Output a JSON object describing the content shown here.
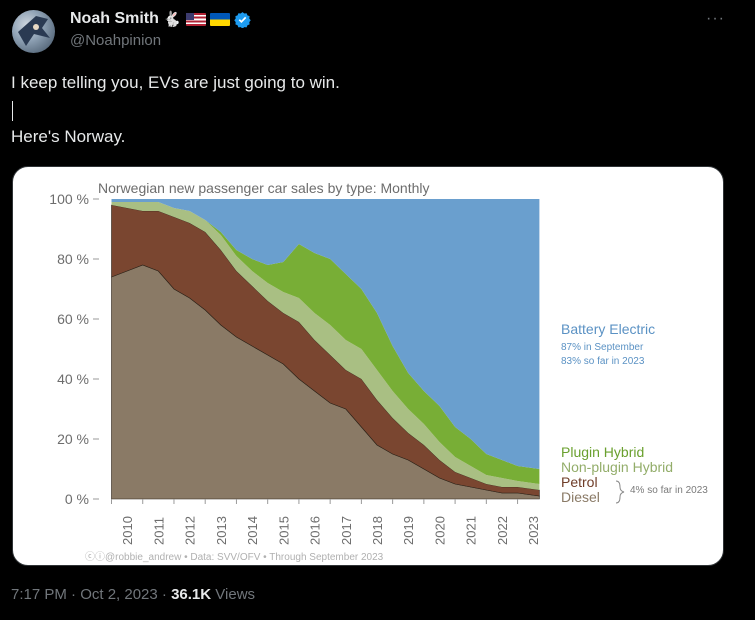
{
  "tweet": {
    "author": {
      "display_name": "Noah Smith",
      "handle": "@Noahpinion",
      "badges": [
        "rabbit-emoji",
        "us-flag",
        "ukraine-flag",
        "verified-badge"
      ]
    },
    "text_line1": "I keep telling you, EVs are just going to win.",
    "text_line2": "Here's Norway.",
    "time": "7:17 PM · Oct 2, 2023 ·",
    "views_count": "36.1K",
    "views_label": "Views",
    "more_icon": "more-icon"
  },
  "chart_data": {
    "type": "area",
    "title": "Norwegian new passenger car sales by type: Monthly",
    "ylim": [
      0,
      100
    ],
    "y_ticks": [
      "0 %",
      "20 %",
      "40 %",
      "60 %",
      "80 %",
      "100 %"
    ],
    "x_ticks": [
      "2010",
      "2011",
      "2012",
      "2013",
      "2014",
      "2015",
      "2016",
      "2017",
      "2018",
      "2019",
      "2020",
      "2021",
      "2022",
      "2023"
    ],
    "x": [
      2010.0,
      2010.5,
      2011.0,
      2011.5,
      2012.0,
      2012.5,
      2013.0,
      2013.5,
      2014.0,
      2014.5,
      2015.0,
      2015.5,
      2016.0,
      2016.5,
      2017.0,
      2017.5,
      2018.0,
      2018.5,
      2019.0,
      2019.5,
      2020.0,
      2020.5,
      2021.0,
      2021.5,
      2022.0,
      2022.5,
      2023.0,
      2023.7
    ],
    "series": [
      {
        "name": "Diesel",
        "color": "#8a7a66",
        "values": [
          74,
          76,
          78,
          76,
          70,
          67,
          63,
          58,
          54,
          51,
          48,
          45,
          40,
          36,
          32,
          30,
          24,
          18,
          15,
          13,
          10,
          7,
          5,
          4,
          3,
          2,
          2,
          1
        ]
      },
      {
        "name": "Petrol",
        "color": "#7a4630",
        "values": [
          24,
          21,
          18,
          20,
          24,
          25,
          26,
          25,
          22,
          20,
          18,
          17,
          19,
          17,
          16,
          13,
          16,
          15,
          12,
          9,
          8,
          6,
          4,
          3,
          2,
          2,
          2,
          2
        ]
      },
      {
        "name": "Non-plugin Hybrid",
        "color": "#a9bf83",
        "values": [
          1,
          2,
          3,
          3,
          3,
          4,
          4,
          5,
          5,
          5,
          6,
          7,
          8,
          9,
          10,
          10,
          10,
          10,
          9,
          8,
          7,
          6,
          5,
          4,
          3,
          3,
          2,
          2
        ]
      },
      {
        "name": "Plugin Hybrid",
        "color": "#78ae36",
        "values": [
          0,
          0,
          0,
          0,
          0,
          0,
          0,
          1,
          2,
          4,
          6,
          10,
          18,
          20,
          22,
          22,
          20,
          19,
          15,
          12,
          11,
          12,
          10,
          9,
          7,
          6,
          5,
          5
        ]
      },
      {
        "name": "Battery Electric",
        "color": "#6a9fce",
        "values": [
          1,
          1,
          1,
          1,
          3,
          4,
          7,
          11,
          17,
          20,
          22,
          21,
          15,
          18,
          20,
          25,
          30,
          38,
          49,
          58,
          64,
          69,
          76,
          80,
          85,
          87,
          89,
          90
        ]
      }
    ],
    "legend": {
      "battery_electric": "Battery Electric",
      "battery_electric_sub1": "87% in September",
      "battery_electric_sub2": "83% so far in 2023",
      "plugin_hybrid": "Plugin Hybrid",
      "non_plugin_hybrid": "Non-plugin Hybrid",
      "petrol": "Petrol",
      "diesel": "Diesel",
      "fossil_note": "4% so far in 2023"
    },
    "footer": "ⓒⓘ@robbie_andrew  •  Data: SVV/OFV  •  Through September 2023",
    "grid": false,
    "legend_placement": "right"
  }
}
